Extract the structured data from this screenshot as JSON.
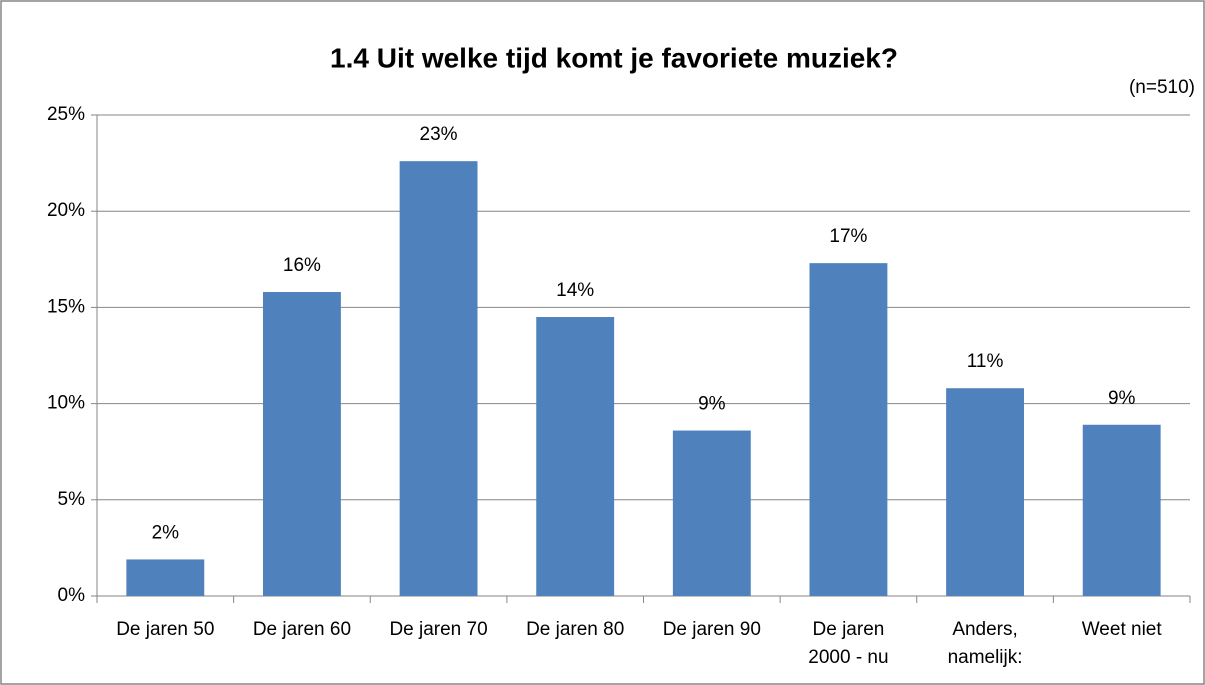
{
  "chart_data": {
    "type": "bar",
    "title": "1.4 Uit welke tijd komt je favoriete muziek?",
    "subtitle": "(n=510)",
    "categories": [
      "De jaren 50",
      "De jaren 60",
      "De jaren 70",
      "De jaren 80",
      "De jaren 90",
      "De jaren\n2000 - nu",
      "Anders,\nnamelijk:",
      "Weet niet"
    ],
    "values": [
      1.9,
      15.8,
      22.6,
      14.5,
      8.6,
      17.3,
      10.8,
      8.9
    ],
    "value_labels": [
      "2%",
      "16%",
      "23%",
      "14%",
      "9%",
      "17%",
      "11%",
      "9%"
    ],
    "color": "#4f81bd",
    "ylim": [
      0,
      25
    ],
    "yticks": [
      {
        "value": 0,
        "label": "0%"
      },
      {
        "value": 5,
        "label": "5%"
      },
      {
        "value": 10,
        "label": "10%"
      },
      {
        "value": 15,
        "label": "15%"
      },
      {
        "value": 20,
        "label": "20%"
      },
      {
        "value": 25,
        "label": "25%"
      }
    ],
    "grid": true
  }
}
